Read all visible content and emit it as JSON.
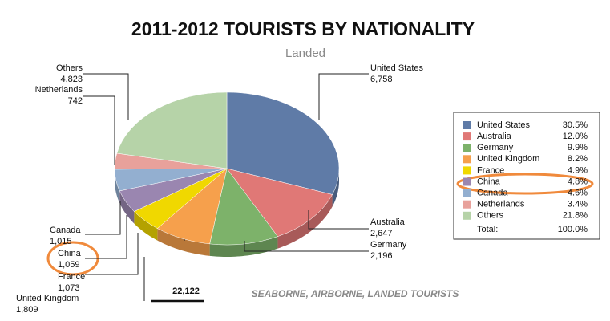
{
  "chart_data": {
    "type": "pie",
    "title": "2011-2012 TOURISTS BY NATIONALITY",
    "subtitle": "Landed",
    "footnote": "SEABORNE, AIRBORNE, LANDED TOURISTS",
    "categories": [
      "United States",
      "Australia",
      "Germany",
      "United Kingdom",
      "France",
      "China",
      "Canada",
      "Netherlands",
      "Others"
    ],
    "values": [
      6758,
      2647,
      2196,
      1809,
      1073,
      1059,
      1015,
      742,
      4823
    ],
    "value_labels": [
      "6,758",
      "2,647",
      "2,196",
      "1,809",
      "1,073",
      "1,059",
      "1,015",
      "742",
      "4,823"
    ],
    "share_labels": [
      "30.5%",
      "12.0%",
      "9.9%",
      "8.2%",
      "4.9%",
      "4.8%",
      "4.6%",
      "3.4%",
      "21.8%"
    ],
    "colors": [
      "#5f7ba7",
      "#e07876",
      "#7db26a",
      "#f6a04c",
      "#f0d800",
      "#9a86b0",
      "#93afd0",
      "#e8a19b",
      "#b6d3a8"
    ],
    "total": {
      "label": "Total:",
      "share_label": "100.0%",
      "value": 22122,
      "value_label": "22,122"
    }
  }
}
